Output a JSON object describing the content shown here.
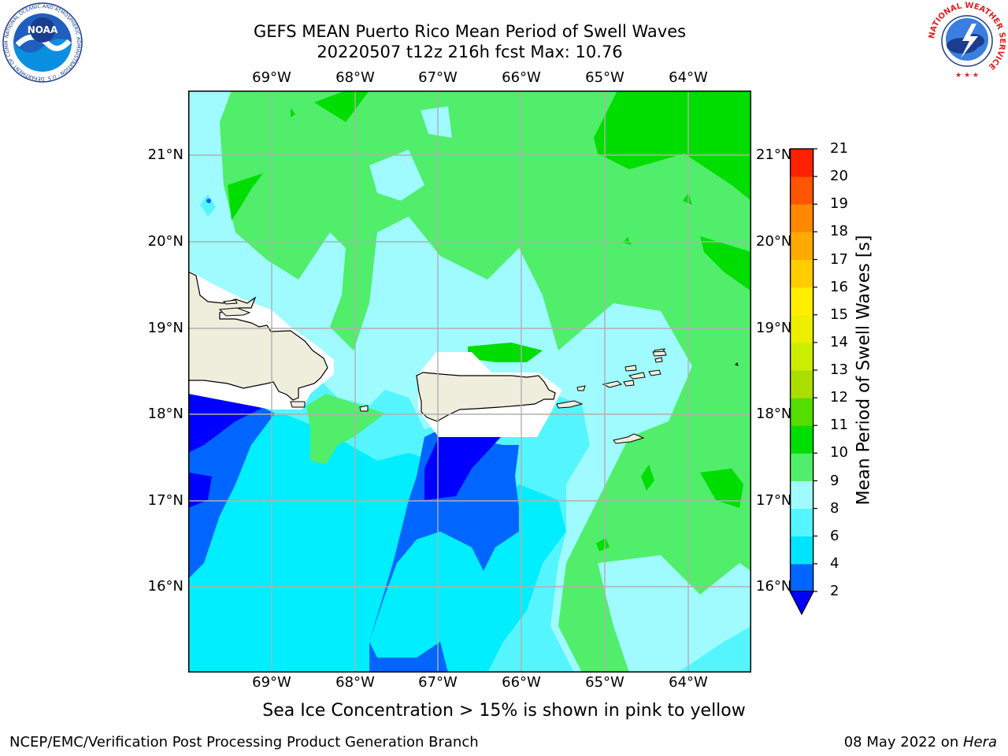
{
  "title": {
    "line1": "GEFS MEAN Puerto Rico Mean Period of Swell Waves",
    "line2": "20220507 t12z 216h fcst   Max: 10.76"
  },
  "axes": {
    "lon_labels": [
      "69°W",
      "68°W",
      "67°W",
      "66°W",
      "65°W",
      "64°W"
    ],
    "lat_labels": [
      "21°N",
      "20°N",
      "19°N",
      "18°N",
      "17°N",
      "16°N"
    ],
    "lon_range": [
      -70.0,
      -63.25
    ],
    "lat_range": [
      15.0,
      21.75
    ],
    "grid": true
  },
  "colorbar": {
    "title": "Mean Period of Swell Waves [s]",
    "levels": [
      2,
      4,
      6,
      8,
      9,
      10,
      11,
      12,
      13,
      14,
      15,
      16,
      17,
      18,
      19,
      20,
      21
    ],
    "colors": [
      "#0066ff",
      "#00e5ff",
      "#55f5ff",
      "#9ffbff",
      "#50ee6a",
      "#00dd00",
      "#55dd00",
      "#aadd00",
      "#ccee00",
      "#eeee00",
      "#ffee00",
      "#ffcc00",
      "#ffaa00",
      "#ff8800",
      "#ff5500",
      "#ff2200",
      "#ff0000"
    ],
    "extend_min_color": "#0000ff",
    "max_value": 10.76
  },
  "colors": {
    "land": "#efeddc",
    "deep_blue": "#0000ff",
    "blue": "#0066ff",
    "cyan": "#00eeff",
    "light_cyan": "#55f5ff",
    "pale_cyan": "#9ffbff",
    "light_green": "#50ee6a",
    "green": "#00dd00",
    "grid": "#b0b0b0"
  },
  "footer": {
    "note": "Sea Ice Concentration > 15% is shown in pink to yellow",
    "left": "NCEP/EMC/Verification Post Processing Product Generation Branch",
    "date": "08 May 2022 on ",
    "machine": "Hera"
  },
  "logos": {
    "noaa_text": "NOAA",
    "noaa_ring": "NATIONAL OCEANIC AND ATMOSPHERIC ADMINISTRATION · U.S. DEPARTMENT OF COMMERCE",
    "nws_ring": "NATIONAL WEATHER SERVICE"
  }
}
